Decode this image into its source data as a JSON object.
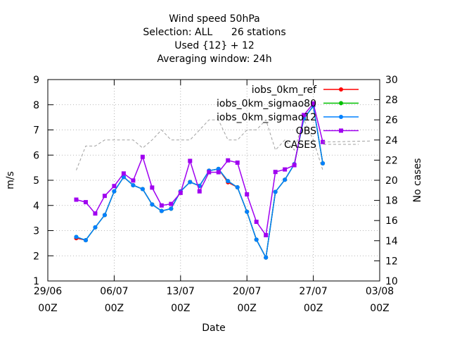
{
  "chart_data": {
    "type": "line",
    "title_lines": [
      "Wind speed 50hPa",
      "Selection: ALL      26 stations",
      "Used {12} + 12",
      "Averaging window: 24h"
    ],
    "xlabel": "Date",
    "ylabel": "m/s",
    "y2label": "No cases",
    "xlim": [
      0,
      35
    ],
    "ylim": [
      1,
      9
    ],
    "y2lim": [
      10,
      30
    ],
    "x_unit": "days since 29/06 00Z",
    "x_ticks": [
      0,
      7,
      14,
      21,
      28,
      35
    ],
    "x_tick_labels": [
      [
        "29/06",
        "00Z"
      ],
      [
        "06/07",
        "00Z"
      ],
      [
        "13/07",
        "00Z"
      ],
      [
        "20/07",
        "00Z"
      ],
      [
        "27/07",
        "00Z"
      ],
      [
        "03/08",
        "00Z"
      ]
    ],
    "y_ticks": [
      1,
      2,
      3,
      4,
      5,
      6,
      7,
      8,
      9
    ],
    "y2_ticks": [
      10,
      12,
      14,
      16,
      18,
      20,
      22,
      24,
      26,
      28,
      30
    ],
    "grid": true,
    "legend_position": "top-right",
    "series": [
      {
        "name": "iobs_0km_ref",
        "color": "#ff0000",
        "marker": "circle",
        "x": [
          3,
          4,
          5,
          6,
          7,
          8,
          9,
          10,
          11,
          12,
          13,
          14,
          15,
          16,
          17,
          18,
          19,
          20,
          21,
          22,
          23,
          24,
          25,
          26,
          27,
          28,
          29
        ],
        "y": [
          2.7,
          2.62,
          3.13,
          3.62,
          4.56,
          5.13,
          4.8,
          4.65,
          4.04,
          3.78,
          3.87,
          4.56,
          4.93,
          4.78,
          5.38,
          5.45,
          4.92,
          4.72,
          3.75,
          2.64,
          1.93,
          4.54,
          5.02,
          5.64,
          7.45,
          7.95,
          5.67
        ]
      },
      {
        "name": "iobs_0km_sigmao80",
        "color": "#00c000",
        "marker": "circle",
        "x": [
          3,
          4,
          5,
          6,
          7,
          8,
          9,
          10,
          11,
          12,
          13,
          14,
          15,
          16,
          17,
          18,
          19,
          20,
          21,
          22,
          23,
          24,
          25,
          26,
          27,
          28,
          29
        ],
        "y": [
          2.75,
          2.62,
          3.13,
          3.62,
          4.56,
          5.13,
          4.8,
          4.65,
          4.04,
          3.78,
          3.87,
          4.56,
          4.93,
          4.78,
          5.38,
          5.45,
          4.97,
          4.72,
          3.75,
          2.64,
          1.93,
          4.54,
          5.02,
          5.64,
          7.45,
          7.95,
          5.67
        ]
      },
      {
        "name": "iobs_0km_sigmao12",
        "color": "#0080ff",
        "marker": "circle",
        "x": [
          3,
          4,
          5,
          6,
          7,
          8,
          9,
          10,
          11,
          12,
          13,
          14,
          15,
          16,
          17,
          18,
          19,
          20,
          21,
          22,
          23,
          24,
          25,
          26,
          27,
          28,
          29
        ],
        "y": [
          2.75,
          2.62,
          3.13,
          3.62,
          4.56,
          5.13,
          4.8,
          4.65,
          4.04,
          3.78,
          3.87,
          4.56,
          4.93,
          4.78,
          5.38,
          5.45,
          4.97,
          4.72,
          3.75,
          2.64,
          1.93,
          4.54,
          5.02,
          5.64,
          7.45,
          7.95,
          5.67
        ]
      },
      {
        "name": "OBS",
        "color": "#a000f0",
        "marker": "square",
        "x": [
          3,
          4,
          5,
          6,
          7,
          8,
          9,
          10,
          11,
          12,
          13,
          14,
          15,
          16,
          17,
          18,
          19,
          20,
          21,
          22,
          23,
          24,
          25,
          26,
          27,
          28,
          29
        ],
        "y": [
          4.23,
          4.13,
          3.68,
          4.38,
          4.77,
          5.27,
          4.99,
          5.93,
          4.71,
          4.0,
          4.06,
          4.5,
          5.77,
          4.56,
          5.32,
          5.32,
          5.79,
          5.7,
          4.44,
          3.35,
          2.82,
          5.33,
          5.43,
          5.6,
          7.59,
          8.05,
          6.52
        ]
      },
      {
        "name": "CASES",
        "color": "#a0a0a0",
        "dashed": true,
        "axis": "y2",
        "x": [
          3,
          4,
          5,
          6,
          7,
          8,
          9,
          10,
          11,
          12,
          13,
          14,
          15,
          16,
          17,
          18,
          19,
          20,
          21,
          22,
          23,
          24,
          25,
          26,
          27,
          28,
          29
        ],
        "y": [
          21,
          23.4,
          23.4,
          24,
          24,
          24,
          24,
          23.2,
          24,
          25,
          24,
          24,
          24,
          25,
          26,
          26,
          24,
          24,
          25,
          25,
          26,
          23,
          24,
          23,
          26,
          24,
          21
        ]
      }
    ],
    "cases_tail": {
      "x": [
        29,
        34
      ],
      "y": [
        23.8,
        23.9
      ]
    }
  }
}
